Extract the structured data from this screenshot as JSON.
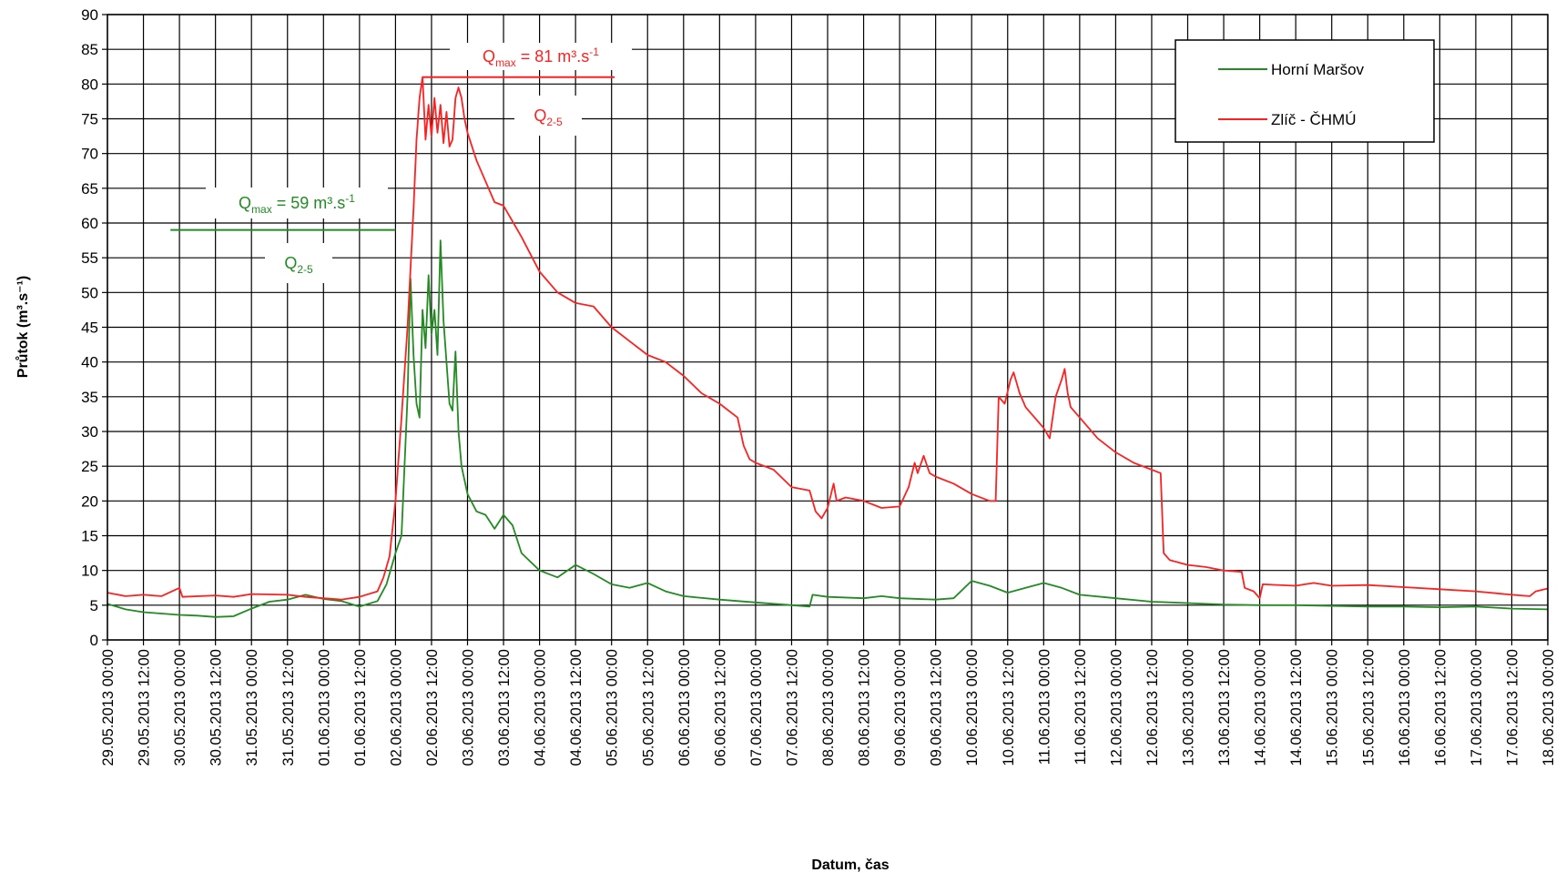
{
  "chart_data": {
    "type": "line",
    "title": "",
    "xlabel": "Datum, čas",
    "ylabel": "Průtok (m³.s⁻¹)",
    "ylim": [
      0,
      90
    ],
    "yticks": [
      0,
      5,
      10,
      15,
      20,
      25,
      30,
      35,
      40,
      45,
      50,
      55,
      60,
      65,
      70,
      75,
      80,
      85,
      90
    ],
    "xlim": [
      "29.05.2013 00:00",
      "18.06.2013 00:00"
    ],
    "xticks": [
      "29.05.2013 00:00",
      "29.05.2013 12:00",
      "30.05.2013 00:00",
      "30.05.2013 12:00",
      "31.05.2013 00:00",
      "31.05.2013 12:00",
      "01.06.2013 00:00",
      "01.06.2013 12:00",
      "02.06.2013 00:00",
      "02.06.2013 12:00",
      "03.06.2013 00:00",
      "03.06.2013 12:00",
      "04.06.2013 00:00",
      "04.06.2013 12:00",
      "05.06.2013 00:00",
      "05.06.2013 12:00",
      "06.06.2013 00:00",
      "06.06.2013 12:00",
      "07.06.2013 00:00",
      "07.06.2013 12:00",
      "08.06.2013 00:00",
      "08.06.2013 12:00",
      "09.06.2013 00:00",
      "09.06.2013 12:00",
      "10.06.2013 00:00",
      "10.06.2013 12:00",
      "11.06.2013 00:00",
      "11.06.2013 12:00",
      "12.06.2013 00:00",
      "12.06.2013 12:00",
      "13.06.2013 00:00",
      "13.06.2013 12:00",
      "14.06.2013 00:00",
      "14.06.2013 12:00",
      "15.06.2013 00:00",
      "15.06.2013 12:00",
      "16.06.2013 00:00",
      "16.06.2013 12:00",
      "17.06.2013 00:00",
      "17.06.2013 12:00",
      "18.06.2013 00:00"
    ],
    "grid": true,
    "legend_position": "top-right",
    "series": [
      {
        "name": "Horní Maršov",
        "color": "#228B22",
        "points": [
          [
            "29.05.2013 00:00",
            5.2
          ],
          [
            "29.05.2013 06:00",
            4.4
          ],
          [
            "29.05.2013 12:00",
            4.0
          ],
          [
            "29.05.2013 18:00",
            3.8
          ],
          [
            "30.05.2013 00:00",
            3.6
          ],
          [
            "30.05.2013 06:00",
            3.5
          ],
          [
            "30.05.2013 12:00",
            3.3
          ],
          [
            "30.05.2013 18:00",
            3.4
          ],
          [
            "31.05.2013 00:00",
            4.5
          ],
          [
            "31.05.2013 06:00",
            5.5
          ],
          [
            "31.05.2013 12:00",
            5.8
          ],
          [
            "31.05.2013 18:00",
            6.5
          ],
          [
            "01.06.2013 00:00",
            5.9
          ],
          [
            "01.06.2013 06:00",
            5.6
          ],
          [
            "01.06.2013 12:00",
            4.8
          ],
          [
            "01.06.2013 18:00",
            5.6
          ],
          [
            "01.06.2013 21:00",
            8.0
          ],
          [
            "02.06.2013 00:00",
            12.5
          ],
          [
            "02.06.2013 02:00",
            15.0
          ],
          [
            "02.06.2013 04:00",
            35.0
          ],
          [
            "02.06.2013 05:00",
            52.0
          ],
          [
            "02.06.2013 06:00",
            41.0
          ],
          [
            "02.06.2013 07:00",
            34.0
          ],
          [
            "02.06.2013 08:00",
            32.0
          ],
          [
            "02.06.2013 09:00",
            47.5
          ],
          [
            "02.06.2013 10:00",
            42.0
          ],
          [
            "02.06.2013 11:00",
            52.5
          ],
          [
            "02.06.2013 12:00",
            44.0
          ],
          [
            "02.06.2013 13:00",
            47.5
          ],
          [
            "02.06.2013 14:00",
            41.0
          ],
          [
            "02.06.2013 15:00",
            57.5
          ],
          [
            "02.06.2013 16:00",
            46.0
          ],
          [
            "02.06.2013 17:00",
            40.0
          ],
          [
            "02.06.2013 18:00",
            34.0
          ],
          [
            "02.06.2013 19:00",
            33.0
          ],
          [
            "02.06.2013 20:00",
            41.5
          ],
          [
            "02.06.2013 21:00",
            30.0
          ],
          [
            "02.06.2013 22:00",
            25.0
          ],
          [
            "03.06.2013 00:00",
            21.0
          ],
          [
            "03.06.2013 03:00",
            18.5
          ],
          [
            "03.06.2013 06:00",
            18.0
          ],
          [
            "03.06.2013 09:00",
            16.0
          ],
          [
            "03.06.2013 12:00",
            18.0
          ],
          [
            "03.06.2013 15:00",
            16.5
          ],
          [
            "03.06.2013 18:00",
            12.5
          ],
          [
            "04.06.2013 00:00",
            10.0
          ],
          [
            "04.06.2013 06:00",
            9.0
          ],
          [
            "04.06.2013 12:00",
            10.8
          ],
          [
            "04.06.2013 18:00",
            9.5
          ],
          [
            "05.06.2013 00:00",
            8.0
          ],
          [
            "05.06.2013 06:00",
            7.5
          ],
          [
            "05.06.2013 12:00",
            8.2
          ],
          [
            "05.06.2013 18:00",
            7.0
          ],
          [
            "06.06.2013 00:00",
            6.3
          ],
          [
            "06.06.2013 12:00",
            5.8
          ],
          [
            "07.06.2013 00:00",
            5.4
          ],
          [
            "07.06.2013 12:00",
            5.0
          ],
          [
            "07.06.2013 18:00",
            4.8
          ],
          [
            "07.06.2013 19:00",
            6.5
          ],
          [
            "08.06.2013 00:00",
            6.2
          ],
          [
            "08.06.2013 12:00",
            6.0
          ],
          [
            "08.06.2013 18:00",
            6.3
          ],
          [
            "09.06.2013 00:00",
            6.0
          ],
          [
            "09.06.2013 12:00",
            5.8
          ],
          [
            "09.06.2013 18:00",
            6.0
          ],
          [
            "10.06.2013 00:00",
            8.5
          ],
          [
            "10.06.2013 06:00",
            7.8
          ],
          [
            "10.06.2013 12:00",
            6.8
          ],
          [
            "10.06.2013 18:00",
            7.5
          ],
          [
            "11.06.2013 00:00",
            8.2
          ],
          [
            "11.06.2013 06:00",
            7.5
          ],
          [
            "11.06.2013 12:00",
            6.5
          ],
          [
            "12.06.2013 00:00",
            6.0
          ],
          [
            "12.06.2013 12:00",
            5.5
          ],
          [
            "13.06.2013 00:00",
            5.3
          ],
          [
            "13.06.2013 12:00",
            5.1
          ],
          [
            "14.06.2013 00:00",
            5.0
          ],
          [
            "14.06.2013 12:00",
            5.0
          ],
          [
            "15.06.2013 00:00",
            4.9
          ],
          [
            "15.06.2013 12:00",
            4.8
          ],
          [
            "16.06.2013 00:00",
            4.8
          ],
          [
            "16.06.2013 12:00",
            4.7
          ],
          [
            "17.06.2013 00:00",
            4.8
          ],
          [
            "17.06.2013 12:00",
            4.5
          ],
          [
            "18.06.2013 00:00",
            4.4
          ]
        ]
      },
      {
        "name": "Zlíč - ČHMÚ",
        "color": "#FF2020",
        "points": [
          [
            "29.05.2013 00:00",
            6.8
          ],
          [
            "29.05.2013 06:00",
            6.3
          ],
          [
            "29.05.2013 12:00",
            6.5
          ],
          [
            "29.05.2013 18:00",
            6.3
          ],
          [
            "30.05.2013 00:00",
            7.5
          ],
          [
            "30.05.2013 01:00",
            6.2
          ],
          [
            "30.05.2013 12:00",
            6.4
          ],
          [
            "30.05.2013 18:00",
            6.2
          ],
          [
            "31.05.2013 00:00",
            6.6
          ],
          [
            "31.05.2013 12:00",
            6.5
          ],
          [
            "31.05.2013 18:00",
            6.2
          ],
          [
            "01.06.2013 00:00",
            6.0
          ],
          [
            "01.06.2013 06:00",
            5.8
          ],
          [
            "01.06.2013 12:00",
            6.2
          ],
          [
            "01.06.2013 18:00",
            7.0
          ],
          [
            "01.06.2013 20:00",
            9.0
          ],
          [
            "01.06.2013 22:00",
            12.0
          ],
          [
            "02.06.2013 00:00",
            20.0
          ],
          [
            "02.06.2013 02:00",
            32.0
          ],
          [
            "02.06.2013 04:00",
            45.0
          ],
          [
            "02.06.2013 06:00",
            62.0
          ],
          [
            "02.06.2013 07:00",
            72.0
          ],
          [
            "02.06.2013 08:00",
            78.0
          ],
          [
            "02.06.2013 09:00",
            81.0
          ],
          [
            "02.06.2013 10:00",
            72.0
          ],
          [
            "02.06.2013 11:00",
            77.0
          ],
          [
            "02.06.2013 12:00",
            72.5
          ],
          [
            "02.06.2013 13:00",
            78.0
          ],
          [
            "02.06.2013 14:00",
            73.0
          ],
          [
            "02.06.2013 15:00",
            77.0
          ],
          [
            "02.06.2013 16:00",
            71.5
          ],
          [
            "02.06.2013 17:00",
            76.0
          ],
          [
            "02.06.2013 18:00",
            71.0
          ],
          [
            "02.06.2013 19:00",
            72.0
          ],
          [
            "02.06.2013 20:00",
            78.0
          ],
          [
            "02.06.2013 21:00",
            79.5
          ],
          [
            "02.06.2013 22:00",
            78.0
          ],
          [
            "02.06.2013 23:00",
            75.0
          ],
          [
            "03.06.2013 00:00",
            73.0
          ],
          [
            "03.06.2013 03:00",
            69.0
          ],
          [
            "03.06.2013 06:00",
            66.0
          ],
          [
            "03.06.2013 09:00",
            63.0
          ],
          [
            "03.06.2013 12:00",
            62.5
          ],
          [
            "03.06.2013 18:00",
            58.0
          ],
          [
            "04.06.2013 00:00",
            53.0
          ],
          [
            "04.06.2013 06:00",
            50.0
          ],
          [
            "04.06.2013 12:00",
            48.5
          ],
          [
            "04.06.2013 18:00",
            48.0
          ],
          [
            "05.06.2013 00:00",
            45.0
          ],
          [
            "05.06.2013 06:00",
            43.0
          ],
          [
            "05.06.2013 12:00",
            41.0
          ],
          [
            "05.06.2013 18:00",
            40.0
          ],
          [
            "06.06.2013 00:00",
            38.0
          ],
          [
            "06.06.2013 06:00",
            35.5
          ],
          [
            "06.06.2013 12:00",
            34.0
          ],
          [
            "06.06.2013 18:00",
            32.0
          ],
          [
            "06.06.2013 20:00",
            28.0
          ],
          [
            "06.06.2013 22:00",
            26.0
          ],
          [
            "07.06.2013 00:00",
            25.5
          ],
          [
            "07.06.2013 06:00",
            24.5
          ],
          [
            "07.06.2013 12:00",
            22.0
          ],
          [
            "07.06.2013 18:00",
            21.5
          ],
          [
            "07.06.2013 20:00",
            18.5
          ],
          [
            "07.06.2013 22:00",
            17.5
          ],
          [
            "08.06.2013 00:00",
            19.0
          ],
          [
            "08.06.2013 02:00",
            22.5
          ],
          [
            "08.06.2013 03:00",
            20.0
          ],
          [
            "08.06.2013 06:00",
            20.5
          ],
          [
            "08.06.2013 12:00",
            20.0
          ],
          [
            "08.06.2013 18:00",
            19.0
          ],
          [
            "09.06.2013 00:00",
            19.2
          ],
          [
            "09.06.2013 03:00",
            22.0
          ],
          [
            "09.06.2013 05:00",
            25.5
          ],
          [
            "09.06.2013 06:00",
            24.0
          ],
          [
            "09.06.2013 08:00",
            26.5
          ],
          [
            "09.06.2013 10:00",
            24.0
          ],
          [
            "09.06.2013 12:00",
            23.5
          ],
          [
            "09.06.2013 18:00",
            22.5
          ],
          [
            "10.06.2013 00:00",
            21.0
          ],
          [
            "10.06.2013 06:00",
            20.0
          ],
          [
            "10.06.2013 08:00",
            20.0
          ],
          [
            "10.06.2013 09:00",
            35.0
          ],
          [
            "10.06.2013 11:00",
            34.0
          ],
          [
            "10.06.2013 13:00",
            37.5
          ],
          [
            "10.06.2013 14:00",
            38.5
          ],
          [
            "10.06.2013 16:00",
            35.5
          ],
          [
            "10.06.2013 18:00",
            33.5
          ],
          [
            "11.06.2013 00:00",
            30.5
          ],
          [
            "11.06.2013 02:00",
            29.0
          ],
          [
            "11.06.2013 04:00",
            35.0
          ],
          [
            "11.06.2013 06:00",
            37.5
          ],
          [
            "11.06.2013 07:00",
            39.0
          ],
          [
            "11.06.2013 08:00",
            35.5
          ],
          [
            "11.06.2013 09:00",
            33.5
          ],
          [
            "11.06.2013 12:00",
            32.0
          ],
          [
            "11.06.2013 18:00",
            29.0
          ],
          [
            "12.06.2013 00:00",
            27.0
          ],
          [
            "12.06.2013 06:00",
            25.5
          ],
          [
            "12.06.2013 12:00",
            24.5
          ],
          [
            "12.06.2013 15:00",
            24.0
          ],
          [
            "12.06.2013 16:00",
            12.5
          ],
          [
            "12.06.2013 18:00",
            11.5
          ],
          [
            "13.06.2013 00:00",
            10.8
          ],
          [
            "13.06.2013 06:00",
            10.5
          ],
          [
            "13.06.2013 12:00",
            10.0
          ],
          [
            "13.06.2013 18:00",
            9.8
          ],
          [
            "13.06.2013 19:00",
            7.5
          ],
          [
            "13.06.2013 22:00",
            7.0
          ],
          [
            "14.06.2013 00:00",
            6.0
          ],
          [
            "14.06.2013 01:00",
            8.0
          ],
          [
            "14.06.2013 12:00",
            7.8
          ],
          [
            "14.06.2013 18:00",
            8.2
          ],
          [
            "15.06.2013 00:00",
            7.8
          ],
          [
            "15.06.2013 12:00",
            7.9
          ],
          [
            "16.06.2013 00:00",
            7.6
          ],
          [
            "16.06.2013 12:00",
            7.3
          ],
          [
            "17.06.2013 00:00",
            7.0
          ],
          [
            "17.06.2013 12:00",
            6.5
          ],
          [
            "17.06.2013 18:00",
            6.3
          ],
          [
            "17.06.2013 20:00",
            7.0
          ],
          [
            "18.06.2013 00:00",
            7.4
          ]
        ]
      }
    ],
    "annotations": {
      "green_qmax": {
        "q": "Q",
        "sub": "max",
        "text": " = 59 m³.s",
        "sup": "-1",
        "color": "#228B22"
      },
      "green_q25": {
        "q": "Q",
        "sub": "2-5",
        "color": "#228B22"
      },
      "red_qmax": {
        "q": "Q",
        "sub": "max",
        "text": " = 81 m³.s",
        "sup": "-1",
        "color": "#FF2020"
      },
      "red_q25": {
        "q": "Q",
        "sub": "2-5",
        "color": "#FF2020"
      },
      "green_qmax_line": {
        "value": 59,
        "from": "29.05.2013 21:00",
        "to": "02.06.2013 00:00"
      },
      "red_qmax_line": {
        "value": 81,
        "from": "02.06.2013 09:00",
        "to": "05.06.2013 01:00"
      }
    }
  }
}
